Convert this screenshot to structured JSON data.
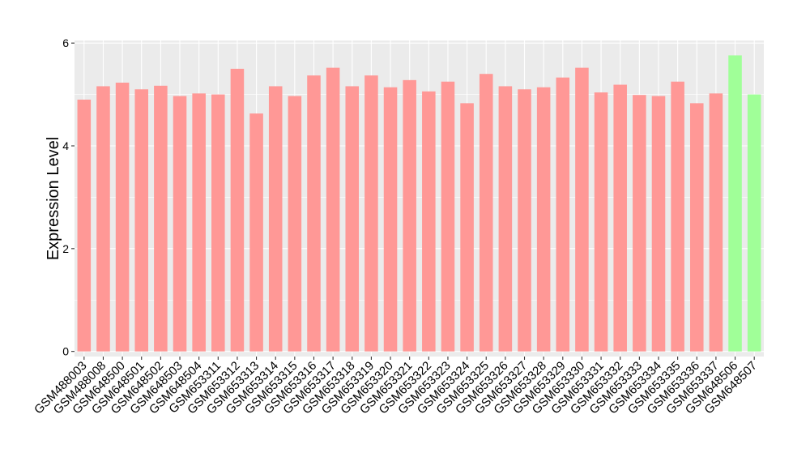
{
  "chart_data": {
    "type": "bar",
    "title": "",
    "xlabel": "",
    "ylabel": "Expression Level",
    "ylim": [
      -0.1,
      6.05
    ],
    "yticks": [
      0,
      2,
      4,
      6
    ],
    "grid": true,
    "legend": "none",
    "colors": {
      "group_a": "#FF9896",
      "group_b": "#A0FF98",
      "panel_bg": "#EBEBEB",
      "grid": "#FFFFFF"
    },
    "categories": [
      "GSM488003",
      "GSM488008",
      "GSM648500",
      "GSM648501",
      "GSM648502",
      "GSM648503",
      "GSM648504",
      "GSM653311",
      "GSM653312",
      "GSM653313",
      "GSM653314",
      "GSM653315",
      "GSM653316",
      "GSM653317",
      "GSM653318",
      "GSM653319",
      "GSM653320",
      "GSM653321",
      "GSM653322",
      "GSM653323",
      "GSM653324",
      "GSM653325",
      "GSM653326",
      "GSM653327",
      "GSM653328",
      "GSM653329",
      "GSM653330",
      "GSM653331",
      "GSM653332",
      "GSM653333",
      "GSM653334",
      "GSM653335",
      "GSM653336",
      "GSM653337",
      "GSM648506",
      "GSM648507"
    ],
    "values": [
      4.9,
      5.16,
      5.23,
      5.1,
      5.17,
      4.97,
      5.02,
      5.0,
      5.5,
      4.63,
      5.16,
      4.97,
      5.37,
      5.52,
      5.16,
      5.37,
      5.14,
      5.28,
      5.06,
      5.25,
      4.83,
      5.4,
      5.16,
      5.1,
      5.14,
      5.33,
      5.52,
      5.04,
      5.19,
      4.99,
      4.97,
      5.25,
      4.83,
      5.02,
      5.76,
      5.0
    ],
    "groups": [
      "a",
      "a",
      "a",
      "a",
      "a",
      "a",
      "a",
      "a",
      "a",
      "a",
      "a",
      "a",
      "a",
      "a",
      "a",
      "a",
      "a",
      "a",
      "a",
      "a",
      "a",
      "a",
      "a",
      "a",
      "a",
      "a",
      "a",
      "a",
      "a",
      "a",
      "a",
      "a",
      "a",
      "a",
      "b",
      "b"
    ]
  }
}
